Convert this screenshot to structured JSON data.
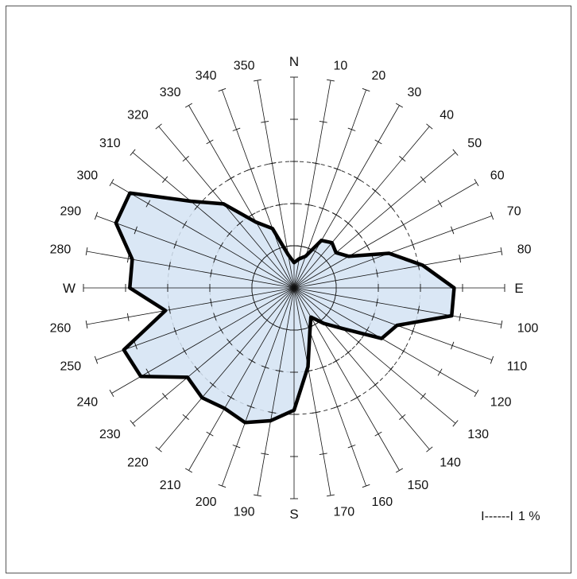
{
  "chart_data": {
    "type": "radar",
    "title": "",
    "cardinals": {
      "N": "N",
      "E": "E",
      "S": "S",
      "W": "W"
    },
    "direction_labels": [
      {
        "deg": 10,
        "text": "10"
      },
      {
        "deg": 20,
        "text": "20"
      },
      {
        "deg": 30,
        "text": "30"
      },
      {
        "deg": 40,
        "text": "40"
      },
      {
        "deg": 50,
        "text": "50"
      },
      {
        "deg": 60,
        "text": "60"
      },
      {
        "deg": 70,
        "text": "70"
      },
      {
        "deg": 80,
        "text": "80"
      },
      {
        "deg": 100,
        "text": "100"
      },
      {
        "deg": 110,
        "text": "110"
      },
      {
        "deg": 120,
        "text": "120"
      },
      {
        "deg": 130,
        "text": "130"
      },
      {
        "deg": 140,
        "text": "140"
      },
      {
        "deg": 150,
        "text": "150"
      },
      {
        "deg": 160,
        "text": "160"
      },
      {
        "deg": 170,
        "text": "170"
      },
      {
        "deg": 190,
        "text": "190"
      },
      {
        "deg": 200,
        "text": "200"
      },
      {
        "deg": 210,
        "text": "210"
      },
      {
        "deg": 220,
        "text": "220"
      },
      {
        "deg": 230,
        "text": "230"
      },
      {
        "deg": 240,
        "text": "240"
      },
      {
        "deg": 250,
        "text": "250"
      },
      {
        "deg": 260,
        "text": "260"
      },
      {
        "deg": 280,
        "text": "280"
      },
      {
        "deg": 290,
        "text": "290"
      },
      {
        "deg": 300,
        "text": "300"
      },
      {
        "deg": 310,
        "text": "310"
      },
      {
        "deg": 320,
        "text": "320"
      },
      {
        "deg": 330,
        "text": "330"
      },
      {
        "deg": 340,
        "text": "340"
      },
      {
        "deg": 350,
        "text": "350"
      }
    ],
    "directions_deg": [
      0,
      10,
      20,
      30,
      40,
      50,
      60,
      70,
      80,
      90,
      100,
      110,
      120,
      130,
      140,
      150,
      160,
      170,
      180,
      190,
      200,
      210,
      220,
      230,
      240,
      250,
      260,
      270,
      280,
      290,
      300,
      310,
      320,
      330,
      340,
      350
    ],
    "values_percent": [
      0.6,
      0.7,
      0.8,
      1.3,
      1.4,
      1.3,
      1.5,
      2.4,
      3.1,
      3.8,
      3.8,
      2.6,
      2.4,
      1.5,
      1.1,
      0.8,
      1.1,
      1.9,
      2.9,
      3.2,
      3.4,
      3.3,
      3.4,
      3.3,
      4.2,
      4.3,
      3.1,
      3.9,
      3.9,
      4.5,
      4.5,
      3.2,
      2.6,
      1.8,
      1.5,
      0.8
    ],
    "rmax_percent": 5,
    "grid": {
      "rings_percent": [
        1,
        2,
        3
      ],
      "solid_ring_percent": 1,
      "tick_step_percent": 1
    },
    "scale_legend": {
      "marker": "I------I",
      "text": "1 %",
      "position": "bottom-right"
    },
    "colors": {
      "fill": "#d4e3f3",
      "outline": "#000000",
      "grid": "#111111"
    }
  }
}
